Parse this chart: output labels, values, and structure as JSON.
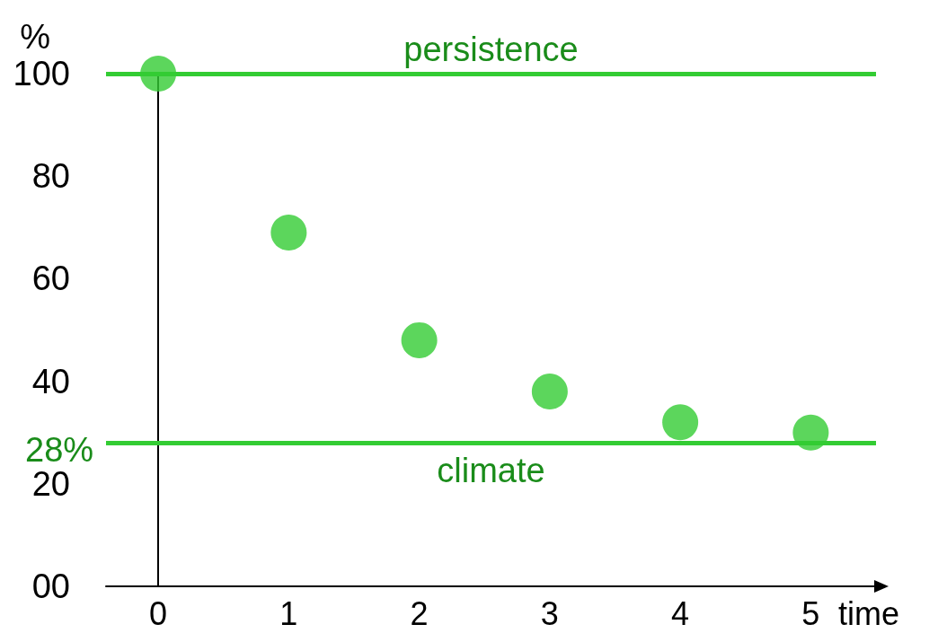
{
  "chart_data": {
    "type": "scatter",
    "xlabel": "time",
    "ylabel": "%",
    "x": [
      0,
      1,
      2,
      3,
      4,
      5
    ],
    "series": [
      {
        "color": "#33cc33",
        "values": [
          100,
          69,
          48,
          38,
          32,
          30
        ]
      }
    ],
    "xlim": [
      -0.4,
      5.5
    ],
    "xticks": [
      0,
      1,
      2,
      3,
      4,
      5
    ],
    "ylim": [
      0,
      100
    ],
    "yticks": [
      {
        "value": 0,
        "label": "00"
      },
      20,
      40,
      60,
      80,
      100
    ],
    "marker": "circle",
    "grid": false,
    "ref_lines": [
      {
        "axis": "y",
        "value": 100,
        "label": "persistence",
        "color": "#33cc33"
      },
      {
        "axis": "y",
        "value": 28,
        "label": "climate",
        "color": "#33cc33"
      }
    ],
    "annotations": [
      "28%"
    ]
  }
}
